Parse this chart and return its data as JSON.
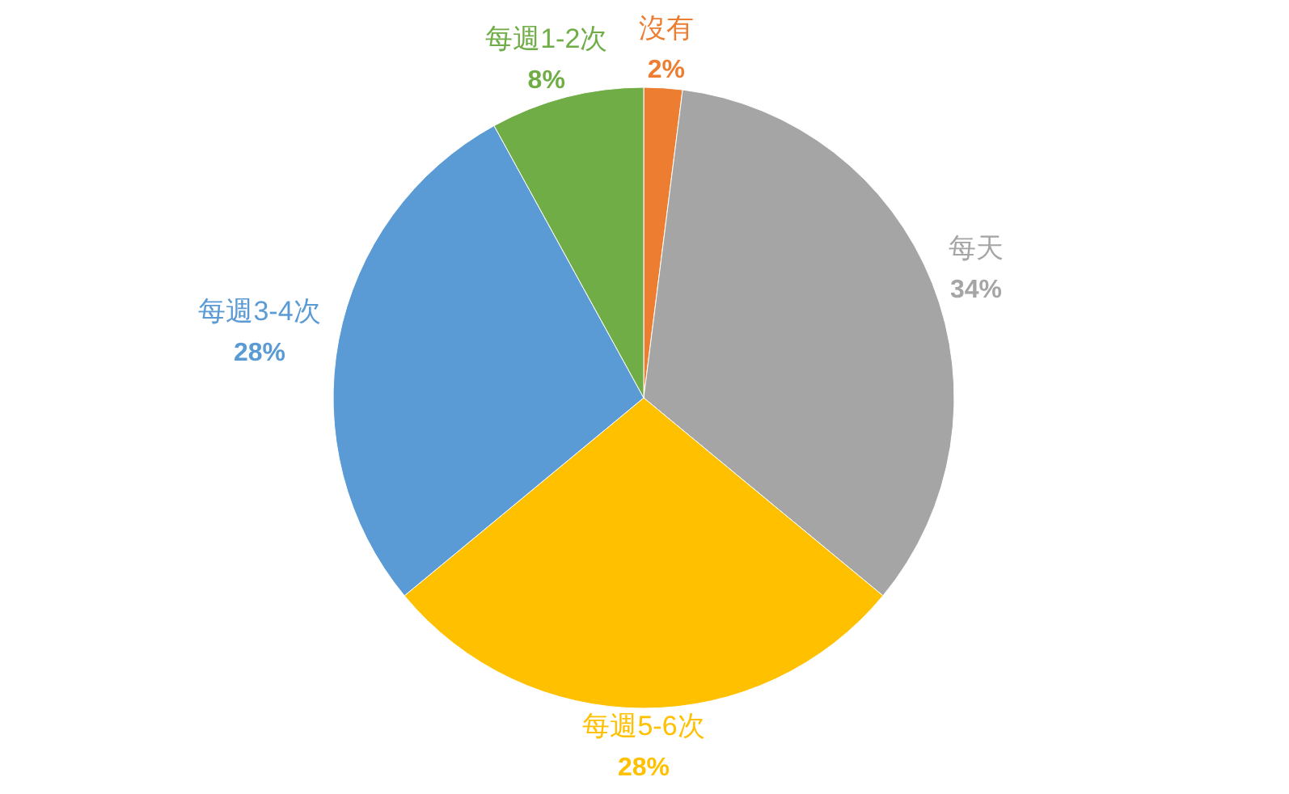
{
  "chart_data": {
    "type": "pie",
    "categories": [
      "沒有",
      "每天",
      "每週5-6次",
      "每週3-4次",
      "每週1-2次"
    ],
    "values": [
      2,
      34,
      28,
      28,
      8
    ],
    "value_labels": [
      "2%",
      "34%",
      "28%",
      "28%",
      "8%"
    ],
    "colors": [
      "#ed7d31",
      "#a5a5a5",
      "#ffc000",
      "#5b9bd5",
      "#70ad47"
    ]
  }
}
